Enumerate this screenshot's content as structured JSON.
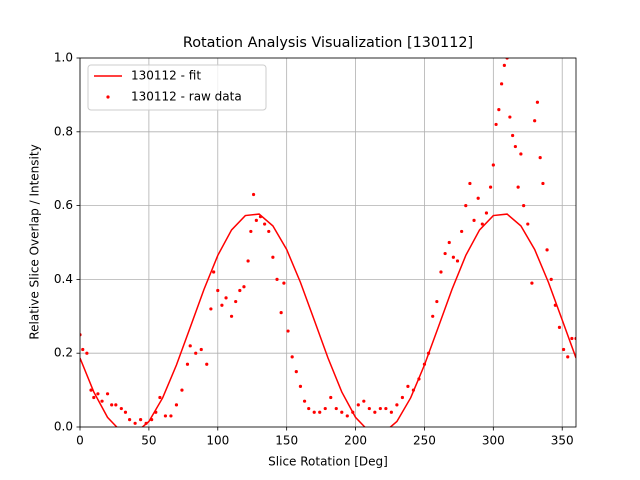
{
  "chart_data": {
    "type": "line",
    "title": "Rotation Analysis Visualization [130112]",
    "xlabel": "Slice Rotation [Deg]",
    "ylabel": "Relative Slice Overlap / Intensity",
    "xlim": [
      0,
      360
    ],
    "ylim": [
      0,
      1
    ],
    "xticks": [
      0,
      50,
      100,
      150,
      200,
      250,
      300,
      350
    ],
    "yticks": [
      {
        "value": 0,
        "label": "0.0"
      },
      {
        "value": 0.2,
        "label": "0.2"
      },
      {
        "value": 0.4,
        "label": "0.4"
      },
      {
        "value": 0.6,
        "label": "0.6"
      },
      {
        "value": 0.8,
        "label": "0.8"
      },
      {
        "value": 1,
        "label": "1.0"
      }
    ],
    "grid": true,
    "legend": "upper left",
    "series": [
      {
        "name": "130112 - fit",
        "color": "#ff0000",
        "style": "line",
        "x": [
          0,
          10,
          20,
          30,
          40,
          50,
          60,
          70,
          80,
          90,
          100,
          110,
          120,
          130,
          140,
          150,
          160,
          170,
          180,
          190,
          200,
          210,
          220,
          230,
          240,
          250,
          260,
          270,
          280,
          290,
          300,
          310,
          320,
          330,
          340,
          350,
          360
        ],
        "values": [
          0.187,
          0.095,
          0.026,
          -0.013,
          -0.017,
          0.015,
          0.079,
          0.168,
          0.27,
          0.373,
          0.465,
          0.534,
          0.573,
          0.577,
          0.545,
          0.481,
          0.392,
          0.29,
          0.187,
          0.095,
          0.026,
          -0.013,
          -0.017,
          0.015,
          0.079,
          0.168,
          0.27,
          0.373,
          0.465,
          0.534,
          0.573,
          0.577,
          0.545,
          0.481,
          0.392,
          0.29,
          0.187
        ]
      },
      {
        "name": "130112 - raw data",
        "color": "#ff0000",
        "style": "scatter",
        "x": [
          0,
          2,
          5,
          8,
          10,
          13,
          16,
          20,
          23,
          26,
          30,
          33,
          36,
          40,
          44,
          48,
          52,
          55,
          58,
          62,
          66,
          70,
          74,
          78,
          80,
          84,
          88,
          92,
          95,
          97,
          100,
          103,
          106,
          110,
          113,
          116,
          119,
          122,
          124,
          126,
          128,
          131,
          134,
          137,
          140,
          143,
          146,
          148,
          151,
          154,
          157,
          160,
          163,
          166,
          170,
          174,
          178,
          182,
          186,
          190,
          194,
          198,
          202,
          206,
          210,
          214,
          218,
          222,
          226,
          230,
          234,
          238,
          242,
          246,
          250,
          253,
          256,
          259,
          262,
          265,
          268,
          271,
          274,
          277,
          280,
          283,
          286,
          289,
          292,
          295,
          298,
          300,
          302,
          304,
          306,
          308,
          310,
          312,
          314,
          316,
          318,
          320,
          322,
          325,
          328,
          330,
          332,
          334,
          336,
          339,
          342,
          345,
          348,
          351,
          354,
          357,
          360
        ],
        "values": [
          0.25,
          0.21,
          0.2,
          0.1,
          0.08,
          0.09,
          0.07,
          0.09,
          0.06,
          0.06,
          0.05,
          0.04,
          0.02,
          0.01,
          0.02,
          0.01,
          0.02,
          0.04,
          0.08,
          0.03,
          0.03,
          0.06,
          0.1,
          0.17,
          0.22,
          0.2,
          0.21,
          0.17,
          0.32,
          0.42,
          0.37,
          0.33,
          0.35,
          0.3,
          0.34,
          0.37,
          0.38,
          0.45,
          0.53,
          0.63,
          0.56,
          0.57,
          0.55,
          0.53,
          0.46,
          0.4,
          0.31,
          0.39,
          0.26,
          0.19,
          0.15,
          0.11,
          0.07,
          0.05,
          0.04,
          0.04,
          0.05,
          0.08,
          0.05,
          0.04,
          0.03,
          0.04,
          0.06,
          0.07,
          0.05,
          0.04,
          0.05,
          0.05,
          0.04,
          0.06,
          0.08,
          0.11,
          0.1,
          0.13,
          0.17,
          0.2,
          0.3,
          0.34,
          0.42,
          0.47,
          0.5,
          0.46,
          0.45,
          0.53,
          0.6,
          0.66,
          0.56,
          0.62,
          0.55,
          0.58,
          0.65,
          0.71,
          0.82,
          0.86,
          0.93,
          0.98,
          1.0,
          0.84,
          0.79,
          0.76,
          0.65,
          0.74,
          0.6,
          0.55,
          0.39,
          0.83,
          0.88,
          0.73,
          0.66,
          0.48,
          0.4,
          0.33,
          0.27,
          0.21,
          0.19,
          0.24,
          0.24
        ]
      }
    ]
  }
}
